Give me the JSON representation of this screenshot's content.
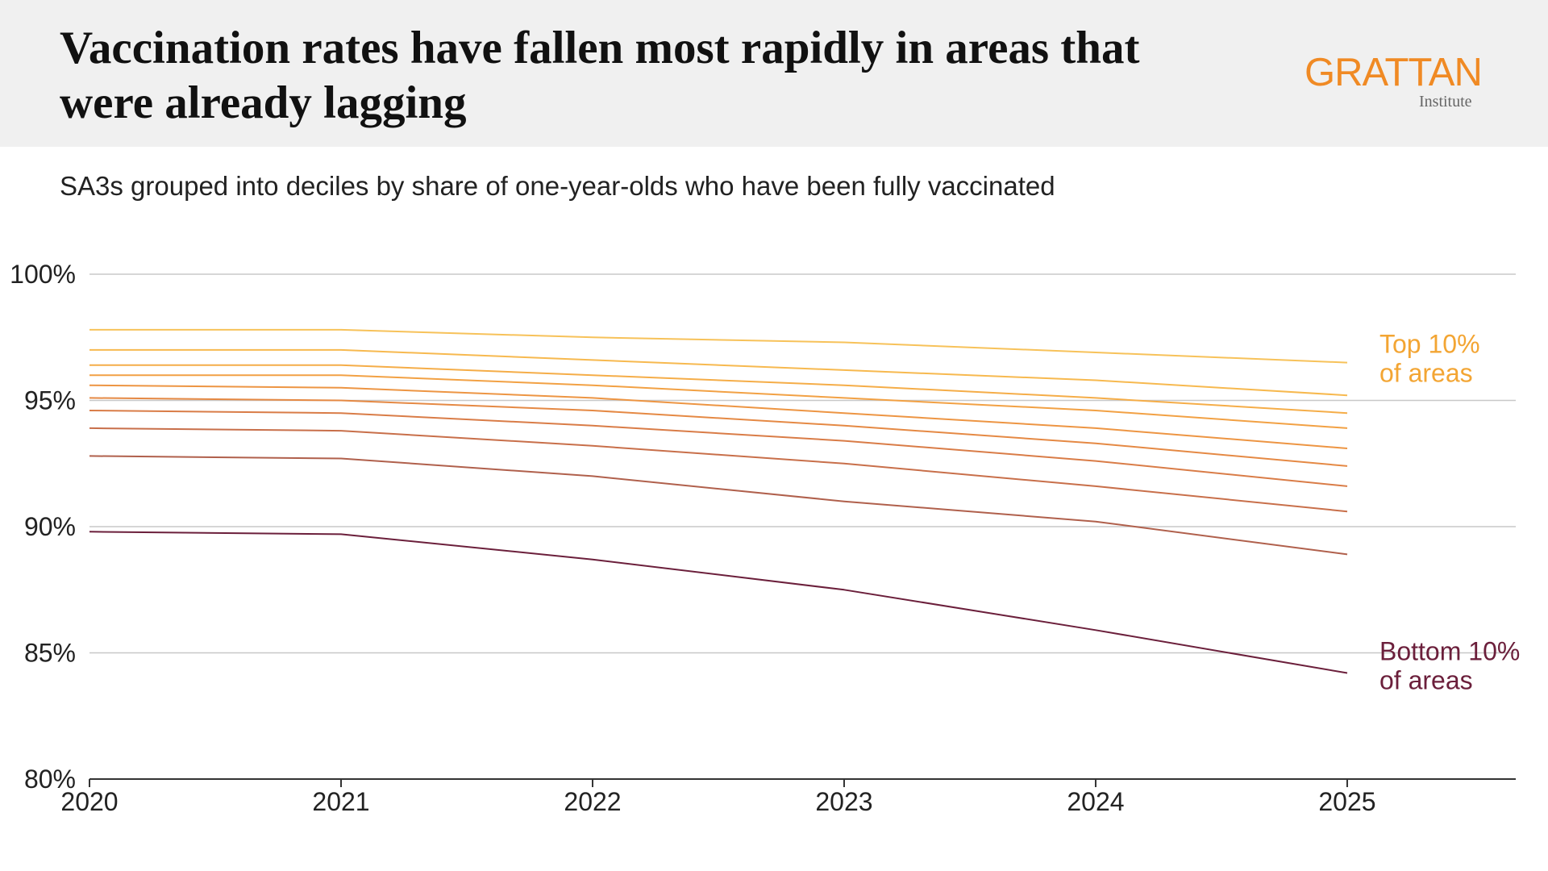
{
  "header": {
    "title": "Vaccination rates have fallen most rapidly in areas that were already lagging",
    "logo_text": "GRATTAN",
    "logo_subtext": "Institute"
  },
  "subtitle": "SA3s grouped into deciles by share of one-year-olds who have been fully vaccinated",
  "colors": {
    "header_background": "#f0f0f0",
    "logo_orange": "#f08a24",
    "gridline": "#c8c8c8",
    "axis": "#333333",
    "top_label": "#f3a533",
    "bottom_label": "#6b1f3b"
  },
  "chart_data": {
    "type": "line",
    "x": [
      2020,
      2021,
      2022,
      2023,
      2024,
      2025
    ],
    "xlim": [
      2020,
      2025.67
    ],
    "ylim": [
      80,
      100
    ],
    "yticks": [
      80,
      85,
      90,
      95,
      100
    ],
    "ytick_labels": [
      "80%",
      "85%",
      "90%",
      "95%",
      "100%"
    ],
    "xtick_labels": [
      "2020",
      "2021",
      "2022",
      "2023",
      "2024",
      "2025"
    ],
    "grid": true,
    "series": [
      {
        "color": "#f7c25a",
        "values": [
          97.8,
          97.8,
          97.5,
          97.3,
          96.9,
          96.5
        ]
      },
      {
        "color": "#f7b94f",
        "values": [
          97.0,
          97.0,
          96.6,
          96.2,
          95.8,
          95.2
        ]
      },
      {
        "color": "#f5ad48",
        "values": [
          96.4,
          96.4,
          96.0,
          95.6,
          95.1,
          94.5
        ]
      },
      {
        "color": "#f2a144",
        "values": [
          96.0,
          96.0,
          95.6,
          95.1,
          94.6,
          93.9
        ]
      },
      {
        "color": "#ed9543",
        "values": [
          95.6,
          95.5,
          95.1,
          94.5,
          93.9,
          93.1
        ]
      },
      {
        "color": "#e58944",
        "values": [
          95.1,
          95.0,
          94.6,
          94.0,
          93.3,
          92.4
        ]
      },
      {
        "color": "#d97c47",
        "values": [
          94.6,
          94.5,
          94.0,
          93.4,
          92.6,
          91.6
        ]
      },
      {
        "color": "#c86f4a",
        "values": [
          93.9,
          93.8,
          93.2,
          92.5,
          91.6,
          90.6
        ]
      },
      {
        "color": "#b0604c",
        "values": [
          92.8,
          92.7,
          92.0,
          91.0,
          90.2,
          88.9
        ]
      },
      {
        "color": "#6b1f3b",
        "values": [
          89.8,
          89.7,
          88.7,
          87.5,
          85.9,
          84.2
        ]
      }
    ],
    "annotations": [
      {
        "line1": "Top 10%",
        "line2": "of areas",
        "color": "#f3a533",
        "y_value": 96.5
      },
      {
        "line1": "Bottom 10%",
        "line2": "of areas",
        "color": "#6b1f3b",
        "y_value": 84.2
      }
    ]
  }
}
